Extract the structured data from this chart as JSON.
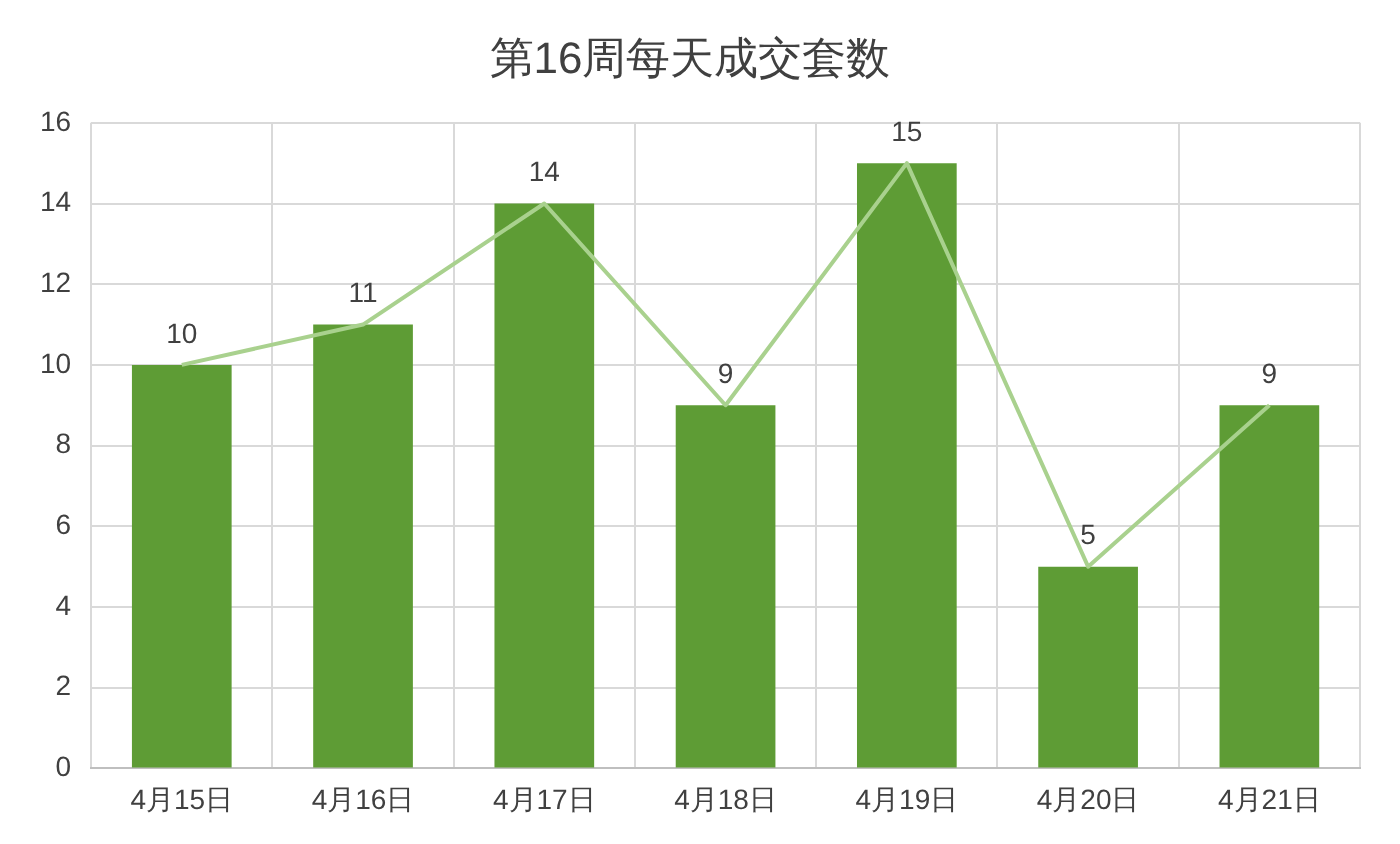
{
  "chart_data": {
    "type": "bar",
    "title": "第16周每天成交套数",
    "categories": [
      "4月15日",
      "4月16日",
      "4月17日",
      "4月18日",
      "4月19日",
      "4月20日",
      "4月21日"
    ],
    "series": [
      {
        "color": "#5e9c35",
        "values": [
          10,
          11,
          14,
          9,
          15,
          5,
          9
        ],
        "value_labels": [
          "10",
          "11",
          "14",
          "9",
          "15",
          "5",
          "9"
        ]
      },
      {
        "type": "line",
        "color": "#a9d18e",
        "values": [
          10,
          11,
          14,
          9,
          15,
          5,
          9
        ]
      }
    ],
    "ylim": [
      0,
      16
    ],
    "yticks": [
      0,
      2,
      4,
      6,
      8,
      10,
      12,
      14,
      16
    ],
    "grid": true,
    "legend": false,
    "marker": "none",
    "line_style": "solid"
  }
}
